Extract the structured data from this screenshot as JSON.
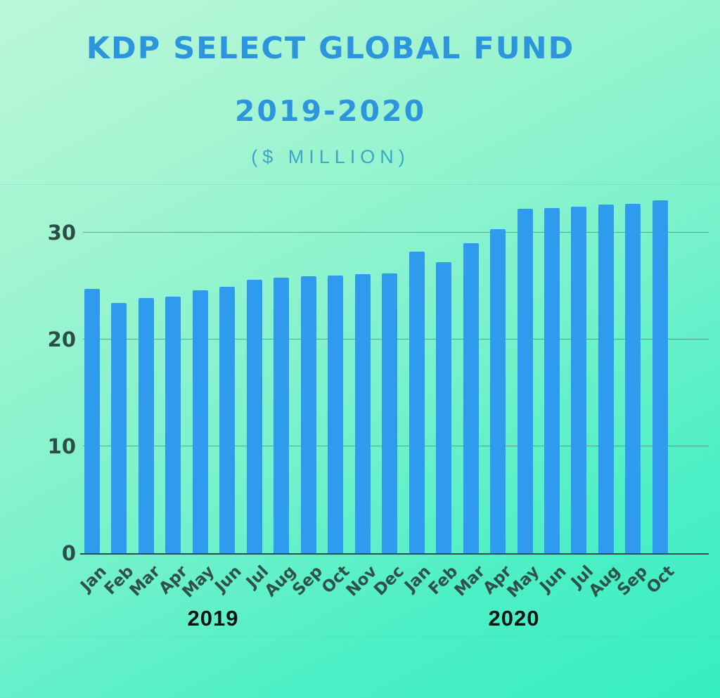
{
  "header": {
    "title": "KDP SELECT GLOBAL FUND",
    "subtitle": "2019-2020",
    "units_label": "($ MILLION)"
  },
  "colors": {
    "bar": "#2e9bee",
    "title_blue": "#2d95de",
    "units_blue": "#3da6c6",
    "axis_text": "#2b4f48",
    "background_top": "#baf8da",
    "background_bottom": "#37eec3"
  },
  "chart_data": {
    "type": "bar",
    "title": "KDP SELECT GLOBAL FUND 2019-2020",
    "ylabel": "$ Million",
    "xlabel": "",
    "grid": true,
    "legend": false,
    "yticks": [
      0,
      10,
      20,
      30
    ],
    "ylim": [
      0,
      34
    ],
    "categories": [
      "Jan",
      "Feb",
      "Mar",
      "Apr",
      "May",
      "Jun",
      "Jul",
      "Aug",
      "Sep",
      "Oct",
      "Nov",
      "Dec",
      "Jan",
      "Feb",
      "Mar",
      "Apr",
      "May",
      "Jun",
      "Jul",
      "Aug",
      "Sep",
      "Oct"
    ],
    "values": [
      24.7,
      23.4,
      23.9,
      24.0,
      24.6,
      24.9,
      25.6,
      25.8,
      25.9,
      26.0,
      26.1,
      26.2,
      28.2,
      27.2,
      29.0,
      30.3,
      32.2,
      32.3,
      32.4,
      32.6,
      32.7,
      33.0
    ],
    "year_groups": [
      {
        "label": "2019",
        "count": 12
      },
      {
        "label": "2020",
        "count": 10
      }
    ]
  }
}
